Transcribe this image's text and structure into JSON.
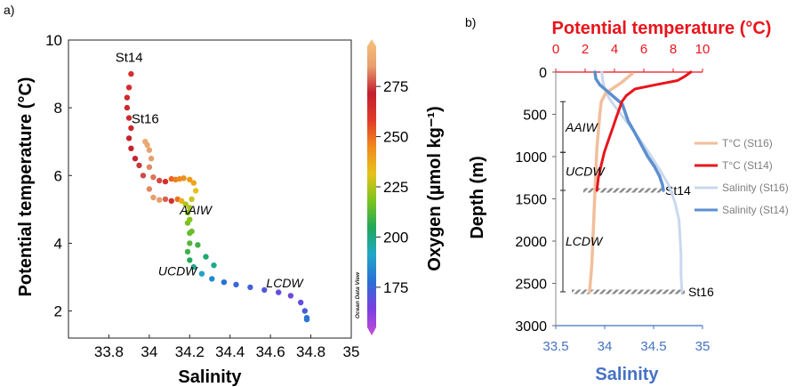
{
  "chart_data": [
    {
      "panel_label": "a)",
      "type": "scatter",
      "xlabel": "Salinity",
      "ylabel": "Potential temperature (°C)",
      "xlim": [
        33.6,
        35.0
      ],
      "ylim": [
        1.2,
        10.0
      ],
      "x_ticks": [
        "33.8",
        "34",
        "34.2",
        "34.4",
        "34.6",
        "34.8",
        "35"
      ],
      "y_ticks": [
        "2",
        "4",
        "6",
        "8",
        "10"
      ],
      "colorbar": {
        "label": "Oxygen (µmol kg⁻¹)",
        "range": [
          155,
          295
        ],
        "ticks": [
          "175",
          "200",
          "225",
          "250",
          "275"
        ],
        "colors": [
          "#c24bd8",
          "#7a3fe0",
          "#2a6fd6",
          "#1fa7c9",
          "#21a85a",
          "#7cc31e",
          "#e6c21a",
          "#f08a1c",
          "#e23a2a",
          "#c21f2f",
          "#e8a070",
          "#f5c27a"
        ]
      },
      "watermark": "Ocean Data View",
      "annotations": [
        {
          "text": "St14",
          "x": 33.9,
          "y": 9.35
        },
        {
          "text": "St16",
          "x": 33.98,
          "y": 7.55
        },
        {
          "text": "AAIW",
          "x": 34.23,
          "y": 4.85
        },
        {
          "text": "UCDW",
          "x": 34.14,
          "y": 3.05
        },
        {
          "text": "LCDW",
          "x": 34.67,
          "y": 2.7
        }
      ],
      "series": [
        {
          "name": "St14",
          "x": [
            33.91,
            33.9,
            33.89,
            33.89,
            33.9,
            33.91,
            33.9,
            33.91,
            33.93,
            33.95,
            33.97,
            34.0,
            34.02,
            34.05,
            34.08,
            34.11,
            34.14,
            34.16,
            34.18,
            34.19,
            34.19,
            34.2,
            34.2,
            34.19,
            34.2,
            34.22,
            34.26,
            34.31,
            34.37,
            34.43,
            34.5,
            34.57,
            34.64,
            34.7,
            34.75,
            34.77,
            34.78,
            34.78
          ],
          "y": [
            9.0,
            8.6,
            8.3,
            8.0,
            7.7,
            7.4,
            7.1,
            6.8,
            6.5,
            6.3,
            6.0,
            5.6,
            5.35,
            5.28,
            5.3,
            5.25,
            5.3,
            5.25,
            5.15,
            4.9,
            4.6,
            4.3,
            4.0,
            3.75,
            3.5,
            3.3,
            3.1,
            2.95,
            2.85,
            2.78,
            2.7,
            2.62,
            2.55,
            2.45,
            2.25,
            2.0,
            1.8,
            1.75
          ],
          "oxygen": [
            262,
            263,
            264,
            265,
            265,
            266,
            268,
            268,
            270,
            272,
            274,
            280,
            282,
            282,
            276,
            262,
            248,
            235,
            225,
            220,
            218,
            215,
            213,
            210,
            206,
            200,
            192,
            186,
            181,
            178,
            176,
            174,
            172,
            170,
            172,
            176,
            180,
            182
          ]
        },
        {
          "name": "St16",
          "x": [
            33.98,
            33.99,
            34.0,
            34.01,
            34.0,
            34.02,
            34.05,
            34.08,
            34.11,
            34.13,
            34.15,
            34.17,
            34.2,
            34.22,
            34.23,
            34.21,
            34.2,
            34.2,
            34.21,
            34.24,
            34.28,
            34.32
          ],
          "y": [
            7.0,
            6.9,
            6.75,
            6.5,
            6.25,
            5.95,
            5.85,
            5.82,
            5.9,
            5.88,
            5.9,
            5.92,
            5.88,
            5.78,
            5.55,
            5.3,
            5.05,
            4.7,
            4.35,
            3.95,
            3.6,
            3.35
          ],
          "oxygen": [
            286,
            285,
            283,
            282,
            280,
            278,
            274,
            262,
            250,
            246,
            244,
            243,
            240,
            238,
            232,
            228,
            224,
            220,
            216,
            210,
            204,
            200
          ]
        }
      ]
    },
    {
      "panel_label": "b)",
      "type": "line",
      "ylabel": "Depth (m)",
      "x_top_label": "Potential temperature (°C)",
      "x_bottom_label": "Salinity",
      "temp_lim": [
        0,
        10
      ],
      "sal_lim": [
        33.5,
        35.0
      ],
      "depth_lim": [
        0,
        3000
      ],
      "temp_ticks": [
        "0",
        "2",
        "4",
        "6",
        "8",
        "10"
      ],
      "sal_ticks": [
        "33.5",
        "34",
        "34.5",
        "35"
      ],
      "depth_ticks": [
        "0",
        "500",
        "1000",
        "1500",
        "2000",
        "2500",
        "3000"
      ],
      "colors": {
        "temp_axis": "#e8151c",
        "sal_axis": "#4472c4",
        "t_st16": "#f2be9c",
        "t_st14": "#e8151c",
        "s_st16": "#c9d8ee",
        "s_st14": "#5b8fd0"
      },
      "layers": [
        {
          "label": "AAIW",
          "top": 350,
          "bottom": 950
        },
        {
          "label": "UCDW",
          "top": 950,
          "bottom": 1400
        },
        {
          "label": "LCDW",
          "top": 1400,
          "bottom": 2600
        }
      ],
      "bottom_markers": [
        {
          "label": "St14",
          "depth": 1400
        },
        {
          "label": "St16",
          "depth": 2600
        }
      ],
      "series": [
        {
          "name": "T°C (St16)",
          "axis": "temp",
          "x": [
            5.2,
            4.5,
            3.4,
            3.1,
            3.0,
            2.9,
            2.8,
            2.75,
            2.7,
            2.65,
            2.6,
            2.55,
            2.5,
            2.45,
            2.3
          ],
          "y": [
            20,
            120,
            250,
            350,
            500,
            700,
            900,
            1100,
            1300,
            1500,
            1700,
            1900,
            2100,
            2300,
            2600
          ]
        },
        {
          "name": "T°C (St14)",
          "axis": "temp",
          "x": [
            9.2,
            8.8,
            8.3,
            6.8,
            5.4,
            4.8,
            4.5,
            4.3,
            4.1,
            3.9,
            3.6,
            3.3,
            3.1,
            2.9,
            2.8
          ],
          "y": [
            0,
            50,
            100,
            150,
            200,
            280,
            350,
            450,
            550,
            650,
            800,
            950,
            1100,
            1250,
            1400
          ]
        },
        {
          "name": "Salinity (St16)",
          "axis": "sal",
          "x": [
            33.97,
            33.98,
            34.0,
            34.04,
            34.1,
            34.2,
            34.33,
            34.45,
            34.56,
            34.66,
            34.72,
            34.76,
            34.77,
            34.78,
            34.78,
            34.79
          ],
          "y": [
            0,
            100,
            200,
            300,
            400,
            550,
            750,
            950,
            1150,
            1350,
            1550,
            1750,
            1950,
            2150,
            2400,
            2600
          ]
        },
        {
          "name": "Salinity (St14)",
          "axis": "sal",
          "x": [
            33.9,
            33.91,
            33.95,
            34.02,
            34.1,
            34.18,
            34.21,
            34.24,
            34.3,
            34.37,
            34.44,
            34.51,
            34.56,
            34.59,
            34.6
          ],
          "y": [
            0,
            80,
            150,
            220,
            300,
            380,
            480,
            580,
            700,
            850,
            1000,
            1120,
            1230,
            1330,
            1400
          ]
        }
      ]
    }
  ]
}
